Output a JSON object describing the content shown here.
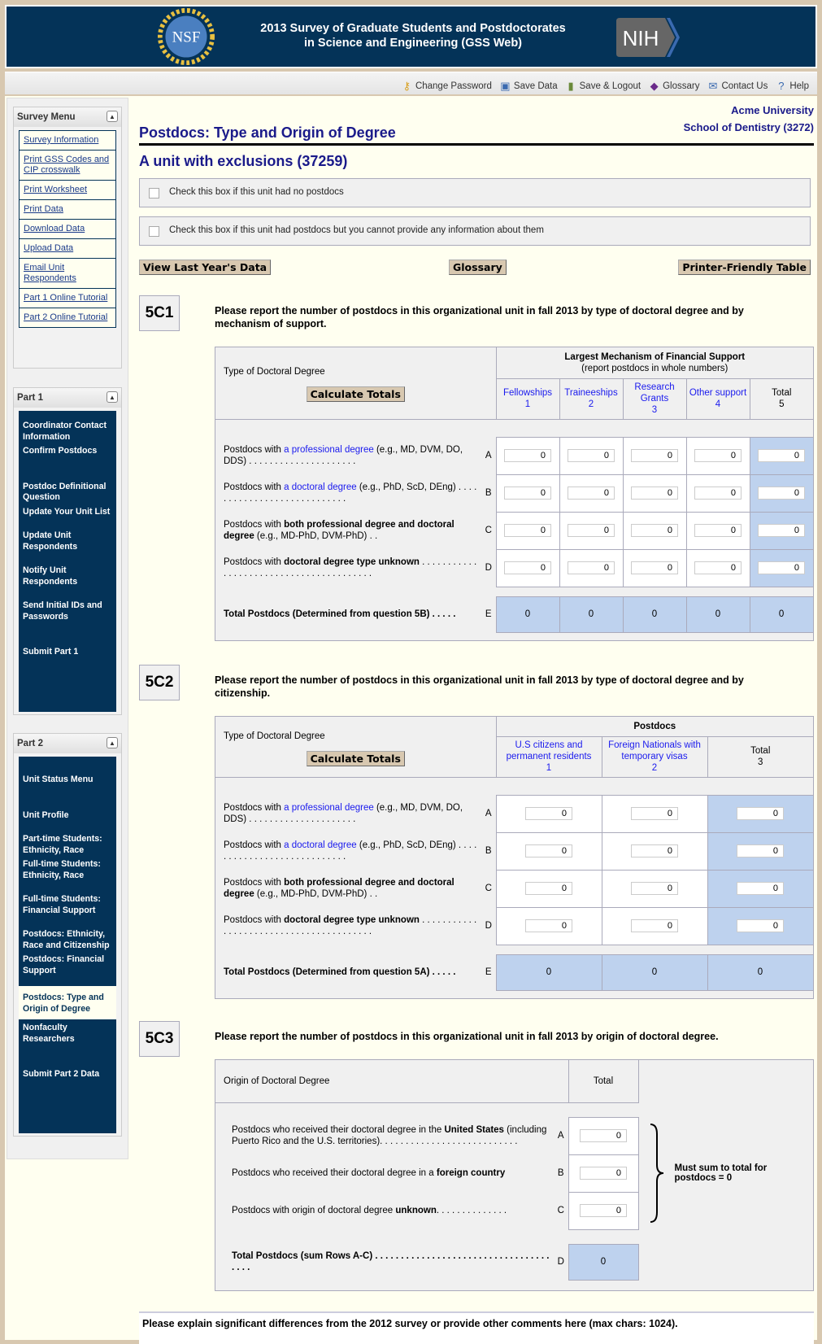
{
  "header": {
    "title_line1": "2013 Survey of Graduate Students and Postdoctorates",
    "title_line2": "in Science and Engineering (GSS Web)",
    "logo_left": "NSF",
    "logo_right": "NIH",
    "colors": {
      "banner": "#043358",
      "accent_button": "#d8c8b0",
      "total_cell": "#bed2ee",
      "link": "#1a1aee"
    }
  },
  "toolbar": [
    {
      "label": "Change Password",
      "icon": "key-icon"
    },
    {
      "label": "Save Data",
      "icon": "floppy-disk-icon"
    },
    {
      "label": "Save & Logout",
      "icon": "logout-door-icon"
    },
    {
      "label": "Glossary",
      "icon": "book-icon"
    },
    {
      "label": "Contact Us",
      "icon": "envelope-icon"
    },
    {
      "label": "Help",
      "icon": "help-icon"
    }
  ],
  "sidebar": {
    "survey_menu": {
      "title": "Survey Menu",
      "items": [
        "Survey Information",
        "Print GSS Codes and CIP crosswalk",
        "Print Worksheet",
        "Print Data",
        "Download Data",
        "Upload Data",
        "Email Unit Respondents",
        "Part 1 Online Tutorial",
        "Part 2 Online Tutorial"
      ]
    },
    "part1": {
      "title": "Part 1",
      "items": [
        "Coordinator Contact Information",
        "Confirm Postdocs",
        "Postdoc Definitional Question",
        "Update Your Unit List",
        "Update Unit Respondents",
        "Notify Unit Respondents",
        "Send Initial IDs and Passwords",
        "Submit Part 1"
      ]
    },
    "part2": {
      "title": "Part 2",
      "active": "Postdocs: Type and Origin of Degree",
      "items": [
        "Unit Status Menu",
        "Unit Profile",
        "Part-time Students: Ethnicity, Race",
        "Full-time Students: Ethnicity, Race",
        "Full-time Students: Financial Support",
        "Postdocs: Ethnicity, Race and Citizenship",
        "Postdocs: Financial Support",
        "Postdocs: Type and Origin of Degree",
        "Nonfaculty Researchers",
        "Submit Part 2 Data"
      ]
    }
  },
  "main": {
    "institution": "Acme University",
    "unit": "School of Dentistry  (3272)",
    "page_title": "Postdocs: Type and Origin of Degree",
    "subtitle": "A unit with exclusions (37259)",
    "check_no_postdocs": "Check this box if this unit had no postdocs",
    "check_no_info": "Check this box if this unit had postdocs but you cannot provide any information about them",
    "buttons": {
      "last_year": "View Last Year's Data",
      "glossary": "Glossary",
      "printer": "Printer-Friendly Table"
    },
    "calculate_label": "Calculate Totals",
    "comments_prompt": "Please explain significant differences from the 2012 survey or provide other comments here (max chars: 1024)."
  },
  "q5c1": {
    "number": "5C1",
    "question": "Please report the number of postdocs in this organizational unit in fall 2013 by type of doctoral degree and by mechanism of support.",
    "row_header": "Type of Doctoral Degree",
    "group_header": "Largest Mechanism of Financial Support",
    "group_sub": "(report postdocs in whole numbers)",
    "columns": [
      {
        "label": "Fellowships",
        "num": "1",
        "link": true
      },
      {
        "label": "Traineeships",
        "num": "2",
        "link": true
      },
      {
        "label": "Research Grants",
        "num": "3",
        "link": true
      },
      {
        "label": "Other support",
        "num": "4",
        "link": true
      },
      {
        "label": "Total",
        "num": "5",
        "link": false
      }
    ],
    "rows": [
      {
        "letter": "A",
        "label": [
          {
            "t": "Postdocs with "
          },
          {
            "t": "a professional degree",
            "s": "link"
          },
          {
            "t": " (e.g., MD, DVM, DO, DDS) . . . . . . . . . . . . . . . . . . . . ."
          }
        ],
        "values": [
          "0",
          "0",
          "0",
          "0",
          "0"
        ]
      },
      {
        "letter": "B",
        "label": [
          {
            "t": "Postdocs with "
          },
          {
            "t": "a doctoral degree",
            "s": "link"
          },
          {
            "t": " (e.g., PhD, ScD, DEng) . . . . . . . . . . . . . . . . . . . . . . . . . . . ."
          }
        ],
        "values": [
          "0",
          "0",
          "0",
          "0",
          "0"
        ]
      },
      {
        "letter": "C",
        "label": [
          {
            "t": "Postdocs with "
          },
          {
            "t": "both professional degree and doctoral degree",
            "s": "bold"
          },
          {
            "t": " (e.g., MD-PhD, DVM-PhD) . ."
          }
        ],
        "values": [
          "0",
          "0",
          "0",
          "0",
          "0"
        ]
      },
      {
        "letter": "D",
        "label": [
          {
            "t": "Postdocs with "
          },
          {
            "t": "doctoral degree type unknown",
            "s": "bold"
          },
          {
            "t": " . . . . . . . . . . . . . . . . . . . . . . . . . . . . . . . . . . . . . . . ."
          }
        ],
        "values": [
          "0",
          "0",
          "0",
          "0",
          "0"
        ]
      }
    ],
    "total_row": {
      "letter": "E",
      "label": "Total Postdocs (Determined from question 5B) . . . . .",
      "values": [
        "0",
        "0",
        "0",
        "0",
        "0"
      ]
    }
  },
  "q5c2": {
    "number": "5C2",
    "question": "Please report the number of postdocs in this organizational unit in fall 2013 by type of doctoral degree and by citizenship.",
    "row_header": "Type of Doctoral Degree",
    "group_header": "Postdocs",
    "columns": [
      {
        "label": "U.S citizens and permanent residents",
        "num": "1",
        "link": true
      },
      {
        "label": "Foreign Nationals with temporary visas",
        "num": "2",
        "link": true
      },
      {
        "label": "Total",
        "num": "3",
        "link": false
      }
    ],
    "rows": [
      {
        "letter": "A",
        "label": [
          {
            "t": "Postdocs with "
          },
          {
            "t": "a professional degree",
            "s": "link"
          },
          {
            "t": " (e.g., MD, DVM, DO, DDS) . . . . . . . . . . . . . . . . . . . . ."
          }
        ],
        "values": [
          "0",
          "0",
          "0"
        ]
      },
      {
        "letter": "B",
        "label": [
          {
            "t": "Postdocs with "
          },
          {
            "t": "a doctoral degree",
            "s": "link"
          },
          {
            "t": " (e.g., PhD, ScD, DEng) . . . . . . . . . . . . . . . . . . . . . . . . . . . ."
          }
        ],
        "values": [
          "0",
          "0",
          "0"
        ]
      },
      {
        "letter": "C",
        "label": [
          {
            "t": "Postdocs with "
          },
          {
            "t": "both professional degree and doctoral degree",
            "s": "bold"
          },
          {
            "t": " (e.g., MD-PhD, DVM-PhD) . ."
          }
        ],
        "values": [
          "0",
          "0",
          "0"
        ]
      },
      {
        "letter": "D",
        "label": [
          {
            "t": "Postdocs with "
          },
          {
            "t": "doctoral degree type unknown",
            "s": "bold"
          },
          {
            "t": " . . . . . . . . . . . . . . . . . . . . . . . . . . . . . . . . . . . . . . . ."
          }
        ],
        "values": [
          "0",
          "0",
          "0"
        ]
      }
    ],
    "total_row": {
      "letter": "E",
      "label": "Total Postdocs (Determined from question 5A) . . . . .",
      "values": [
        "0",
        "0",
        "0"
      ]
    }
  },
  "q5c3": {
    "number": "5C3",
    "question": "Please report the number of postdocs in this organizational unit in fall 2013 by origin of doctoral degree.",
    "row_header": "Origin of Doctoral Degree",
    "total_header": "Total",
    "rows": [
      {
        "letter": "A",
        "label": [
          {
            "t": "Postdocs who received their doctoral degree in the "
          },
          {
            "t": "United States",
            "s": "bold"
          },
          {
            "t": " (including Puerto Rico and the U.S. territories). . . . . . . . . . . . . . . . . . . . . . . . . . ."
          }
        ],
        "value": "0"
      },
      {
        "letter": "B",
        "label": [
          {
            "t": "Postdocs who received their doctoral degree in a "
          },
          {
            "t": "foreign country",
            "s": "bold"
          }
        ],
        "value": "0"
      },
      {
        "letter": "C",
        "label": [
          {
            "t": "Postdocs with origin of doctoral degree "
          },
          {
            "t": "unknown",
            "s": "bold"
          },
          {
            "t": ". . . . . . . . . . . . . ."
          }
        ],
        "value": "0"
      }
    ],
    "total_row": {
      "letter": "D",
      "label": "Total Postdocs (sum Rows A-C) . . . . . . . . . . . . . . . . . . . . . . . . . . . . . . . . . . . . . .",
      "value": "0"
    },
    "sum_note": "Must sum to total for postdocs = 0"
  }
}
